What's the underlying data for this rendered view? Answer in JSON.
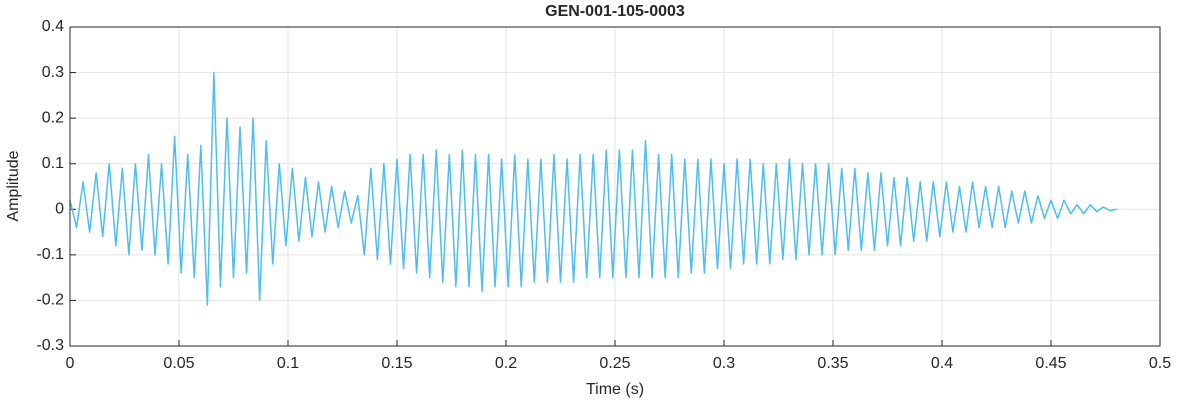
{
  "chart_data": {
    "type": "line",
    "title": "GEN-001-105-0003",
    "xlabel": "Time (s)",
    "ylabel": "Amplitude",
    "x": [
      0,
      0.003,
      0.006,
      0.009,
      0.012,
      0.015,
      0.018,
      0.021,
      0.024,
      0.027,
      0.03,
      0.033,
      0.036,
      0.039,
      0.042,
      0.045,
      0.048,
      0.051,
      0.054,
      0.057,
      0.06,
      0.063,
      0.066,
      0.069,
      0.072,
      0.075,
      0.078,
      0.081,
      0.084,
      0.087,
      0.09,
      0.093,
      0.096,
      0.099,
      0.102,
      0.105,
      0.108,
      0.111,
      0.114,
      0.117,
      0.12,
      0.123,
      0.126,
      0.129,
      0.132,
      0.135,
      0.138,
      0.141,
      0.144,
      0.147,
      0.15,
      0.153,
      0.156,
      0.159,
      0.162,
      0.165,
      0.168,
      0.171,
      0.174,
      0.177,
      0.18,
      0.183,
      0.186,
      0.189,
      0.192,
      0.195,
      0.198,
      0.201,
      0.204,
      0.207,
      0.21,
      0.213,
      0.216,
      0.219,
      0.222,
      0.225,
      0.228,
      0.231,
      0.234,
      0.237,
      0.24,
      0.243,
      0.246,
      0.249,
      0.252,
      0.255,
      0.258,
      0.261,
      0.264,
      0.267,
      0.27,
      0.273,
      0.276,
      0.279,
      0.282,
      0.285,
      0.288,
      0.291,
      0.294,
      0.297,
      0.3,
      0.303,
      0.306,
      0.309,
      0.312,
      0.315,
      0.318,
      0.321,
      0.324,
      0.327,
      0.33,
      0.333,
      0.336,
      0.339,
      0.342,
      0.345,
      0.348,
      0.351,
      0.354,
      0.357,
      0.36,
      0.363,
      0.366,
      0.369,
      0.372,
      0.375,
      0.378,
      0.381,
      0.384,
      0.387,
      0.39,
      0.393,
      0.396,
      0.399,
      0.402,
      0.405,
      0.408,
      0.411,
      0.414,
      0.417,
      0.42,
      0.423,
      0.426,
      0.429,
      0.432,
      0.435,
      0.438,
      0.441,
      0.444,
      0.447,
      0.45,
      0.453,
      0.456,
      0.459,
      0.462,
      0.465,
      0.468,
      0.471,
      0.474,
      0.477,
      0.48
    ],
    "series": [
      {
        "color": "#4dbeee",
        "values": [
          0.02,
          -0.04,
          0.06,
          -0.05,
          0.08,
          -0.06,
          0.1,
          -0.08,
          0.09,
          -0.1,
          0.1,
          -0.09,
          0.12,
          -0.1,
          0.1,
          -0.12,
          0.16,
          -0.14,
          0.12,
          -0.15,
          0.14,
          -0.21,
          0.3,
          -0.17,
          0.2,
          -0.15,
          0.18,
          -0.14,
          0.2,
          -0.2,
          0.15,
          -0.12,
          0.1,
          -0.08,
          0.09,
          -0.07,
          0.07,
          -0.06,
          0.06,
          -0.05,
          0.05,
          -0.04,
          0.04,
          -0.03,
          0.03,
          -0.1,
          0.09,
          -0.11,
          0.1,
          -0.12,
          0.11,
          -0.13,
          0.12,
          -0.14,
          0.12,
          -0.15,
          0.13,
          -0.16,
          0.12,
          -0.17,
          0.13,
          -0.17,
          0.12,
          -0.18,
          0.12,
          -0.17,
          0.11,
          -0.17,
          0.12,
          -0.17,
          0.11,
          -0.16,
          0.11,
          -0.16,
          0.12,
          -0.16,
          0.11,
          -0.16,
          0.12,
          -0.15,
          0.12,
          -0.15,
          0.13,
          -0.15,
          0.13,
          -0.15,
          0.13,
          -0.15,
          0.15,
          -0.15,
          0.12,
          -0.15,
          0.12,
          -0.15,
          0.11,
          -0.14,
          0.11,
          -0.14,
          0.11,
          -0.13,
          0.1,
          -0.13,
          0.11,
          -0.12,
          0.11,
          -0.12,
          0.1,
          -0.12,
          0.1,
          -0.11,
          0.11,
          -0.11,
          0.1,
          -0.1,
          0.1,
          -0.1,
          0.1,
          -0.1,
          0.09,
          -0.09,
          0.09,
          -0.09,
          0.08,
          -0.09,
          0.08,
          -0.08,
          0.07,
          -0.08,
          0.07,
          -0.07,
          0.06,
          -0.07,
          0.06,
          -0.06,
          0.06,
          -0.05,
          0.05,
          -0.05,
          0.06,
          -0.04,
          0.05,
          -0.04,
          0.05,
          -0.04,
          0.04,
          -0.03,
          0.04,
          -0.03,
          0.03,
          -0.02,
          0.02,
          -0.02,
          0.02,
          -0.01,
          0.01,
          -0.01,
          0.01,
          -0.005,
          0.005,
          -0.003,
          0
        ]
      }
    ],
    "xlim": [
      0,
      0.5
    ],
    "xticks": [
      0,
      0.05,
      0.1,
      0.15,
      0.2,
      0.25,
      0.3,
      0.35,
      0.4,
      0.45,
      0.5
    ],
    "ylim": [
      -0.3,
      0.4
    ],
    "yticks": [
      -0.3,
      -0.2,
      -0.1,
      0,
      0.1,
      0.2,
      0.3,
      0.4
    ],
    "grid": true
  }
}
